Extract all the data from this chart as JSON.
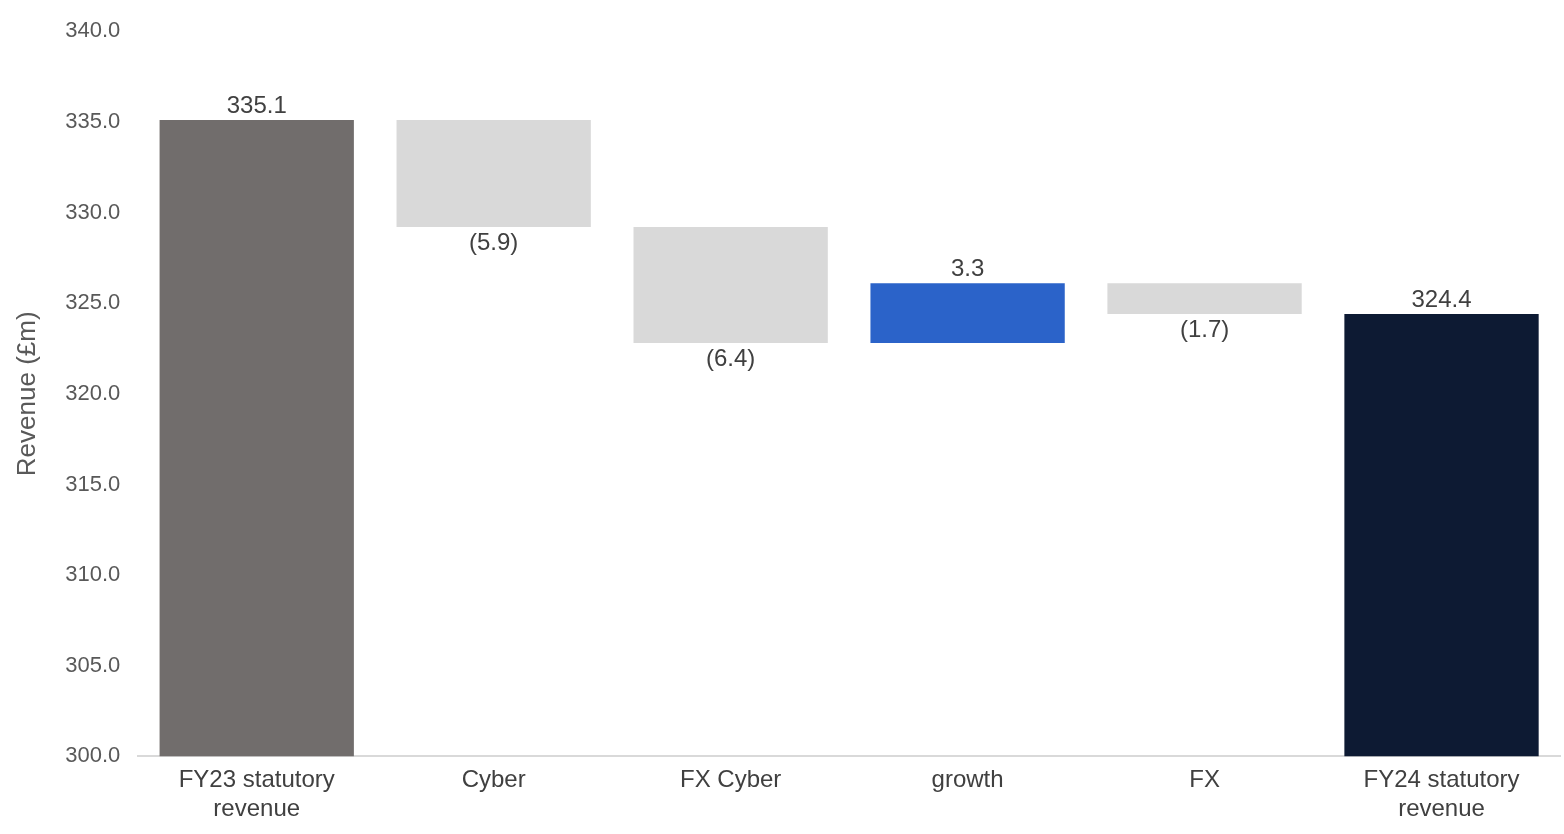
{
  "chart_data": {
    "type": "bar",
    "ylabel": "Revenue (£m)",
    "categories": [
      "FY23 statutory revenue",
      "Cyber",
      "FX Cyber",
      "growth",
      "FX",
      "FY24 statutory revenue"
    ],
    "base": [
      300,
      335.1,
      329.2,
      322.8,
      326.1,
      300
    ],
    "values": [
      35.1,
      -5.9,
      -6.4,
      3.3,
      -1.7,
      24.4
    ],
    "value_labels": [
      "335.1",
      "(5.9)",
      "(6.4)",
      "3.3",
      "(1.7)",
      "324.4"
    ],
    "colors": [
      "#716d6c",
      "#d9d9d9",
      "#d9d9d9",
      "#2b63c9",
      "#d9d9d9",
      "#0d1a33"
    ],
    "ylim": [
      300,
      340
    ],
    "yticks": [
      {
        "value": 300,
        "label": "300.0"
      },
      {
        "value": 305,
        "label": "305.0"
      },
      {
        "value": 310,
        "label": "310.0"
      },
      {
        "value": 315,
        "label": "315.0"
      },
      {
        "value": 320,
        "label": "320.0"
      },
      {
        "value": 325,
        "label": "325.0"
      },
      {
        "value": 330,
        "label": "330.0"
      },
      {
        "value": 335,
        "label": "335.0"
      },
      {
        "value": 340,
        "label": "340.0"
      }
    ],
    "grid": false,
    "legend": false
  }
}
